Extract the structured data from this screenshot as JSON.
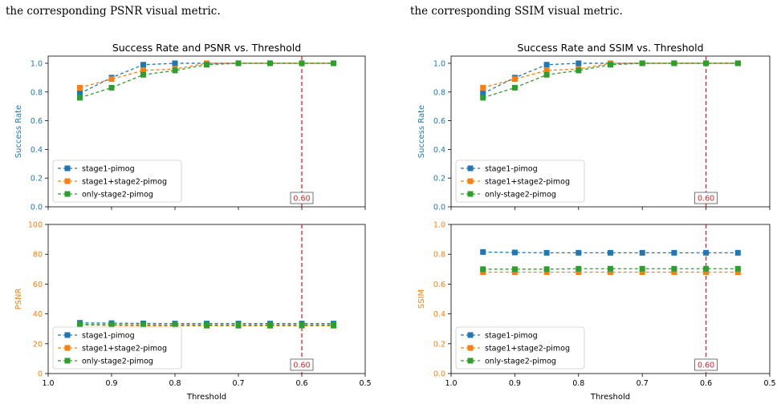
{
  "captions": {
    "left": "the corresponding PSNR visual metric.",
    "right": "the corresponding SSIM visual metric."
  },
  "colors": {
    "stage1-pimog": "#1f77b4",
    "stage1+stage2-pimog": "#ff7f0e",
    "only-stage2-pimog": "#2ca02c",
    "threshold_line": "#d62728",
    "axis_blue": "#1f77b4",
    "axis_orange": "#ff7f0e"
  },
  "chart_data": [
    {
      "type": "line",
      "title": "Success Rate and PSNR vs. Threshold",
      "xlabel": "Threshold",
      "xlim": [
        1.0,
        0.5
      ],
      "x_ticks": [
        "1.0",
        "0.9",
        "0.8",
        "0.7",
        "0.6",
        "0.5"
      ],
      "x": [
        0.95,
        0.9,
        0.85,
        0.8,
        0.75,
        0.7,
        0.65,
        0.6,
        0.55
      ],
      "threshold_marker": {
        "value": 0.6,
        "label": "0.60"
      },
      "top": {
        "ylabel": "Success Rate",
        "ylim": [
          0,
          1.05
        ],
        "y_ticks": [
          "0.0",
          "0.2",
          "0.4",
          "0.6",
          "0.8",
          "1.0"
        ],
        "legend": "bottom-left",
        "series": [
          {
            "name": "stage1-pimog",
            "values": [
              0.79,
              0.9,
              0.99,
              1.0,
              1.0,
              1.0,
              1.0,
              1.0,
              1.0
            ]
          },
          {
            "name": "stage1+stage2-pimog",
            "values": [
              0.83,
              0.89,
              0.95,
              0.96,
              1.0,
              1.0,
              1.0,
              1.0,
              1.0
            ]
          },
          {
            "name": "only-stage2-pimog",
            "values": [
              0.76,
              0.83,
              0.92,
              0.95,
              0.99,
              1.0,
              1.0,
              1.0,
              1.0
            ]
          }
        ]
      },
      "bottom": {
        "ylabel": "PSNR",
        "ylim": [
          0,
          100
        ],
        "y_ticks": [
          "0",
          "20",
          "40",
          "60",
          "80",
          "100"
        ],
        "legend": "bottom-left",
        "series": [
          {
            "name": "stage1-pimog",
            "values": [
              34,
              33.8,
              33.6,
              33.5,
              33.5,
              33.5,
              33.5,
              33.5,
              33.5
            ]
          },
          {
            "name": "stage1+stage2-pimog",
            "values": [
              32.5,
              32.3,
              32,
              32,
              32,
              32,
              32,
              32,
              32
            ]
          },
          {
            "name": "only-stage2-pimog",
            "values": [
              33,
              32.8,
              32.6,
              32.5,
              32.5,
              32.5,
              32.5,
              32.5,
              32.5
            ]
          }
        ]
      }
    },
    {
      "type": "line",
      "title": "Success Rate and SSIM vs. Threshold",
      "xlabel": "Threshold",
      "xlim": [
        1.0,
        0.5
      ],
      "x_ticks": [
        "1.0",
        "0.9",
        "0.8",
        "0.7",
        "0.6",
        "0.5"
      ],
      "x": [
        0.95,
        0.9,
        0.85,
        0.8,
        0.75,
        0.7,
        0.65,
        0.6,
        0.55
      ],
      "threshold_marker": {
        "value": 0.6,
        "label": "0.60"
      },
      "top": {
        "ylabel": "Success Rate",
        "ylim": [
          0,
          1.05
        ],
        "y_ticks": [
          "0.0",
          "0.2",
          "0.4",
          "0.6",
          "0.8",
          "1.0"
        ],
        "legend": "bottom-left",
        "series": [
          {
            "name": "stage1-pimog",
            "values": [
              0.79,
              0.9,
              0.99,
              1.0,
              1.0,
              1.0,
              1.0,
              1.0,
              1.0
            ]
          },
          {
            "name": "stage1+stage2-pimog",
            "values": [
              0.83,
              0.89,
              0.95,
              0.96,
              1.0,
              1.0,
              1.0,
              1.0,
              1.0
            ]
          },
          {
            "name": "only-stage2-pimog",
            "values": [
              0.76,
              0.83,
              0.92,
              0.95,
              0.99,
              1.0,
              1.0,
              1.0,
              1.0
            ]
          }
        ]
      },
      "bottom": {
        "ylabel": "SSIM",
        "ylim": [
          0,
          1.0
        ],
        "y_ticks": [
          "0.0",
          "0.2",
          "0.4",
          "0.6",
          "0.8",
          "1.0"
        ],
        "legend": "bottom-left",
        "series": [
          {
            "name": "stage1-pimog",
            "values": [
              0.815,
              0.812,
              0.81,
              0.81,
              0.81,
              0.81,
              0.81,
              0.81,
              0.81
            ]
          },
          {
            "name": "stage1+stage2-pimog",
            "values": [
              0.68,
              0.68,
              0.68,
              0.68,
              0.68,
              0.68,
              0.68,
              0.68,
              0.68
            ]
          },
          {
            "name": "only-stage2-pimog",
            "values": [
              0.7,
              0.7,
              0.7,
              0.703,
              0.703,
              0.703,
              0.703,
              0.703,
              0.703
            ]
          }
        ]
      }
    }
  ]
}
